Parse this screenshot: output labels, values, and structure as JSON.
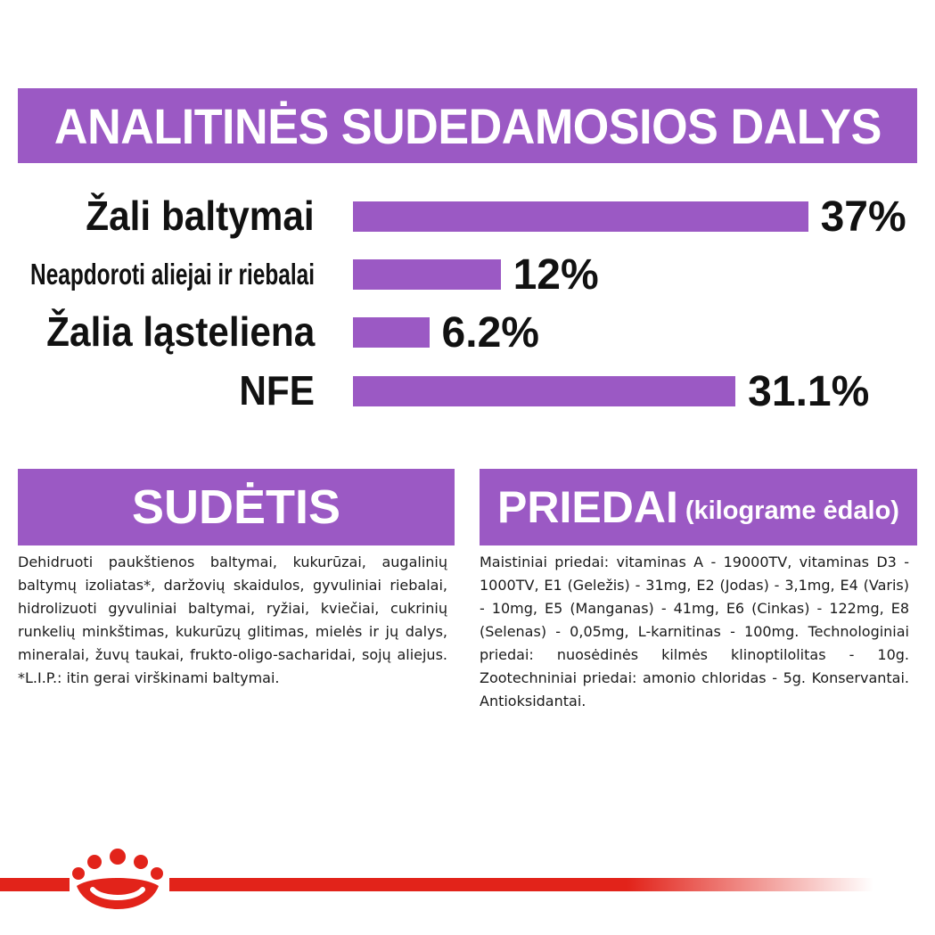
{
  "title": "ANALITINĖS SUDEDAMOSIOS DALYS",
  "chart_data": {
    "type": "bar",
    "orientation": "horizontal",
    "categories": [
      "Žali baltymai",
      "Neapdoroti aliejai ir riebalai",
      "Žalia ląsteliena",
      "NFE"
    ],
    "values": [
      37,
      12,
      6.2,
      31.1
    ],
    "value_labels": [
      "37%",
      "12%",
      "6.2%",
      "31.1%"
    ],
    "bar_color": "#9b59c4"
  },
  "sections": {
    "sudetis": {
      "title": "SUDĖTIS",
      "text": "Dehidruoti paukštienos baltymai, kukurūzai, augalinių baltymų izoliatas*, daržovių skaidulos, gyvuliniai riebalai, hidrolizuoti gyvuliniai baltymai, ryžiai, kviečiai, cukrinių runkelių minkštimas, kukurūzų glitimas, mielės ir jų dalys, mineralai, žuvų taukai, frukto-oligo-sacharidai, sojų aliejus. *L.I.P.: itin gerai virškinami baltymai."
    },
    "priedai": {
      "title": "PRIEDAI",
      "subtitle": "(kilograme ėdalo)",
      "text": "Maistiniai priedai: vitaminas A - 19000TV, vitaminas D3 - 1000TV, E1 (Geležis) - 31mg, E2 (Jodas) - 3,1mg, E4 (Varis) - 10mg, E5 (Manganas) - 41mg, E6 (Cinkas) - 122mg, E8 (Selenas) - 0,05mg, L-karnitinas - 100mg. Technologiniai priedai: nuosėdinės kilmės klinoptilolitas - 10g. Zootechniniai priedai: amonio chloridas - 5g. Konservantai. Antioksidantai."
    }
  },
  "footer": {
    "logo_icon": "royal-canin-crown-icon",
    "line_color": "#e2231a"
  }
}
